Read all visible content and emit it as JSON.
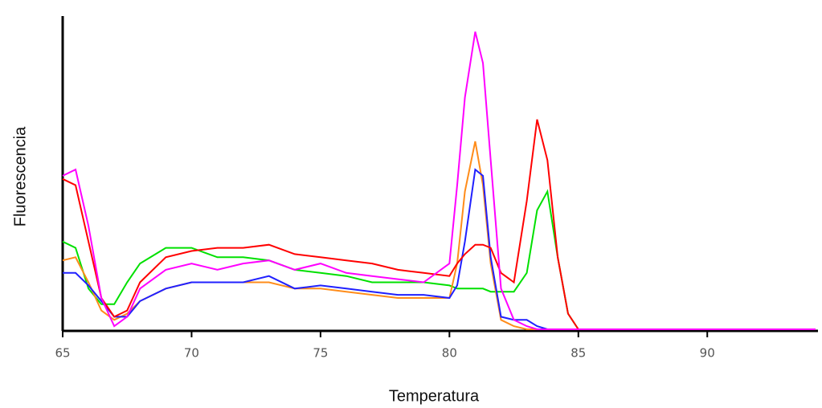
{
  "chart_data": {
    "type": "line",
    "x_label": "Temperatura",
    "y_label": "Fluorescencia",
    "x": [
      65,
      65.5,
      66,
      66.5,
      67,
      67.5,
      68,
      69,
      70,
      71,
      72,
      73,
      74,
      75,
      76,
      77,
      78,
      79,
      80,
      80.3,
      80.6,
      81,
      81.3,
      81.6,
      82,
      82.5,
      83,
      83.4,
      83.8,
      84.2,
      84.6,
      85,
      90,
      94.2
    ],
    "series": [
      {
        "color": "#00e000",
        "values": [
          28,
          26,
          13,
          8,
          8,
          15,
          21,
          26,
          26,
          23,
          23,
          22,
          19,
          18,
          17,
          15,
          15,
          15,
          14,
          13,
          13,
          13,
          13,
          12,
          12,
          12,
          18,
          38,
          44,
          23,
          5,
          0,
          0,
          0
        ]
      },
      {
        "color": "#ff8c1a",
        "values": [
          22,
          23,
          15,
          6,
          3,
          5,
          9,
          13,
          15,
          15,
          15,
          15,
          13,
          13,
          12,
          11,
          10,
          10,
          10,
          21,
          44,
          60,
          46,
          21,
          3,
          1,
          0,
          0,
          0,
          0,
          0,
          0,
          0,
          0
        ]
      },
      {
        "color": "#2020ff",
        "values": [
          18,
          18,
          14,
          9,
          4,
          4,
          9,
          13,
          15,
          15,
          15,
          17,
          13,
          14,
          13,
          12,
          11,
          11,
          10,
          14,
          28,
          51,
          49,
          23,
          4,
          3,
          3,
          1,
          0,
          0,
          0,
          0,
          0,
          0
        ]
      },
      {
        "color": "#ff0000",
        "values": [
          48,
          46,
          28,
          10,
          4,
          6,
          15,
          23,
          25,
          26,
          26,
          27,
          24,
          23,
          22,
          21,
          19,
          18,
          17,
          21,
          24,
          27,
          27,
          26,
          18,
          15,
          41,
          67,
          54,
          23,
          5,
          0,
          0,
          0
        ]
      },
      {
        "color": "#ff00ff",
        "values": [
          49,
          51,
          33,
          10,
          1,
          4,
          13,
          19,
          21,
          19,
          21,
          22,
          19,
          21,
          18,
          17,
          16,
          15,
          21,
          46,
          74,
          95,
          85,
          54,
          13,
          3,
          1,
          0,
          0,
          0,
          0,
          0,
          0,
          0
        ]
      }
    ],
    "xlim": [
      65,
      94.2
    ],
    "ylim": [
      0,
      100
    ],
    "xticks": [
      65,
      70,
      75,
      80,
      85,
      90
    ]
  }
}
